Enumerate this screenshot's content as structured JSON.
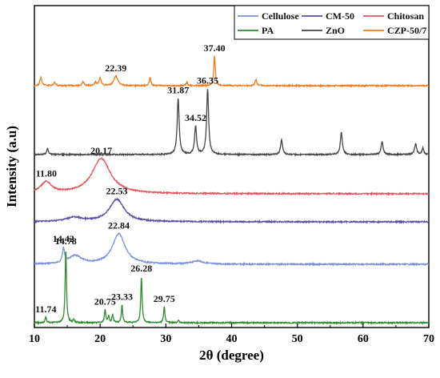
{
  "chart_data": {
    "type": "line",
    "xlabel": "2θ (degree)",
    "ylabel": "Intensity (a.u)",
    "xlim": [
      10,
      70
    ],
    "xticks": [
      10,
      20,
      30,
      40,
      50,
      60,
      70
    ],
    "yticks_shown": false,
    "grid": false,
    "legend_position": "top-right",
    "legend_columns": 3,
    "series": [
      {
        "name": "Cellulose",
        "color": "#7B8FD6",
        "baseline": 330,
        "peaks": [
          {
            "x": 14.42,
            "h": 18,
            "w": 0.18
          },
          {
            "x": 16.2,
            "h": 10,
            "w": 1.2
          },
          {
            "x": 22.84,
            "h": 38,
            "w": 1.15
          },
          {
            "x": 34.8,
            "h": 4,
            "w": 1.0
          }
        ],
        "labels": [
          {
            "text": "14.42",
            "x": 14.42
          },
          {
            "text": "22.84",
            "x": 22.84
          }
        ]
      },
      {
        "name": "CM-50",
        "color": "#5A4FA0",
        "baseline": 277,
        "peaks": [
          {
            "x": 16.0,
            "h": 5,
            "w": 1.5
          },
          {
            "x": 22.53,
            "h": 28,
            "w": 1.35
          }
        ],
        "labels": [
          {
            "text": "22.53",
            "x": 22.53
          }
        ]
      },
      {
        "name": "Chitosan",
        "color": "#E05560",
        "baseline": 242,
        "peaks": [
          {
            "x": 11.8,
            "h": 14,
            "w": 1.0
          },
          {
            "x": 20.17,
            "h": 44,
            "w": 1.7
          }
        ],
        "labels": [
          {
            "text": "11.80",
            "x": 11.8
          },
          {
            "text": "20.17",
            "x": 20.17
          }
        ]
      },
      {
        "name": "ZnO",
        "color": "#454545",
        "baseline": 193,
        "peaks": [
          {
            "x": 12.0,
            "h": 8,
            "w": 0.15
          },
          {
            "x": 31.87,
            "h": 70,
            "w": 0.18
          },
          {
            "x": 34.52,
            "h": 35,
            "w": 0.18
          },
          {
            "x": 36.35,
            "h": 82,
            "w": 0.18
          },
          {
            "x": 47.6,
            "h": 18,
            "w": 0.18
          },
          {
            "x": 56.7,
            "h": 28,
            "w": 0.18
          },
          {
            "x": 62.9,
            "h": 16,
            "w": 0.18
          },
          {
            "x": 68.0,
            "h": 14,
            "w": 0.18
          },
          {
            "x": 69.1,
            "h": 8,
            "w": 0.15
          }
        ],
        "labels": [
          {
            "text": "31.87",
            "x": 31.87
          },
          {
            "text": "34.52",
            "x": 34.52
          },
          {
            "text": "36.35",
            "x": 36.35
          }
        ]
      },
      {
        "name": "PA",
        "color": "#2E8B2E",
        "baseline": 403,
        "peaks": [
          {
            "x": 11.74,
            "h": 7,
            "w": 0.12
          },
          {
            "x": 14.78,
            "h": 92,
            "w": 0.12
          },
          {
            "x": 16.0,
            "h": 4,
            "w": 0.12
          },
          {
            "x": 20.75,
            "h": 16,
            "w": 0.12
          },
          {
            "x": 21.3,
            "h": 8,
            "w": 0.12
          },
          {
            "x": 21.9,
            "h": 10,
            "w": 0.12
          },
          {
            "x": 23.33,
            "h": 22,
            "w": 0.12
          },
          {
            "x": 26.28,
            "h": 58,
            "w": 0.12
          },
          {
            "x": 29.75,
            "h": 20,
            "w": 0.12
          },
          {
            "x": 31.9,
            "h": 3,
            "w": 0.12
          }
        ],
        "labels": [
          {
            "text": "11.74",
            "x": 11.74
          },
          {
            "text": "14.78",
            "x": 14.78
          },
          {
            "text": "20.75",
            "x": 20.75
          },
          {
            "text": "23.33",
            "x": 23.33
          },
          {
            "text": "26.28",
            "x": 26.28
          },
          {
            "text": "29.75",
            "x": 29.75
          }
        ]
      },
      {
        "name": "CZP-50/7",
        "color": "#F07C20",
        "baseline": 107,
        "peaks": [
          {
            "x": 11.0,
            "h": 10,
            "w": 0.18
          },
          {
            "x": 13.1,
            "h": 4,
            "w": 0.18
          },
          {
            "x": 17.4,
            "h": 5,
            "w": 0.18
          },
          {
            "x": 19.3,
            "h": 4,
            "w": 0.18
          },
          {
            "x": 20.0,
            "h": 9,
            "w": 0.18
          },
          {
            "x": 22.39,
            "h": 12,
            "w": 0.35
          },
          {
            "x": 27.6,
            "h": 10,
            "w": 0.15
          },
          {
            "x": 33.2,
            "h": 4,
            "w": 0.15
          },
          {
            "x": 37.4,
            "h": 37,
            "w": 0.14
          },
          {
            "x": 43.7,
            "h": 8,
            "w": 0.15
          }
        ],
        "labels": [
          {
            "text": "22.39",
            "x": 22.39
          },
          {
            "text": "37.40",
            "x": 37.4
          }
        ]
      }
    ]
  }
}
